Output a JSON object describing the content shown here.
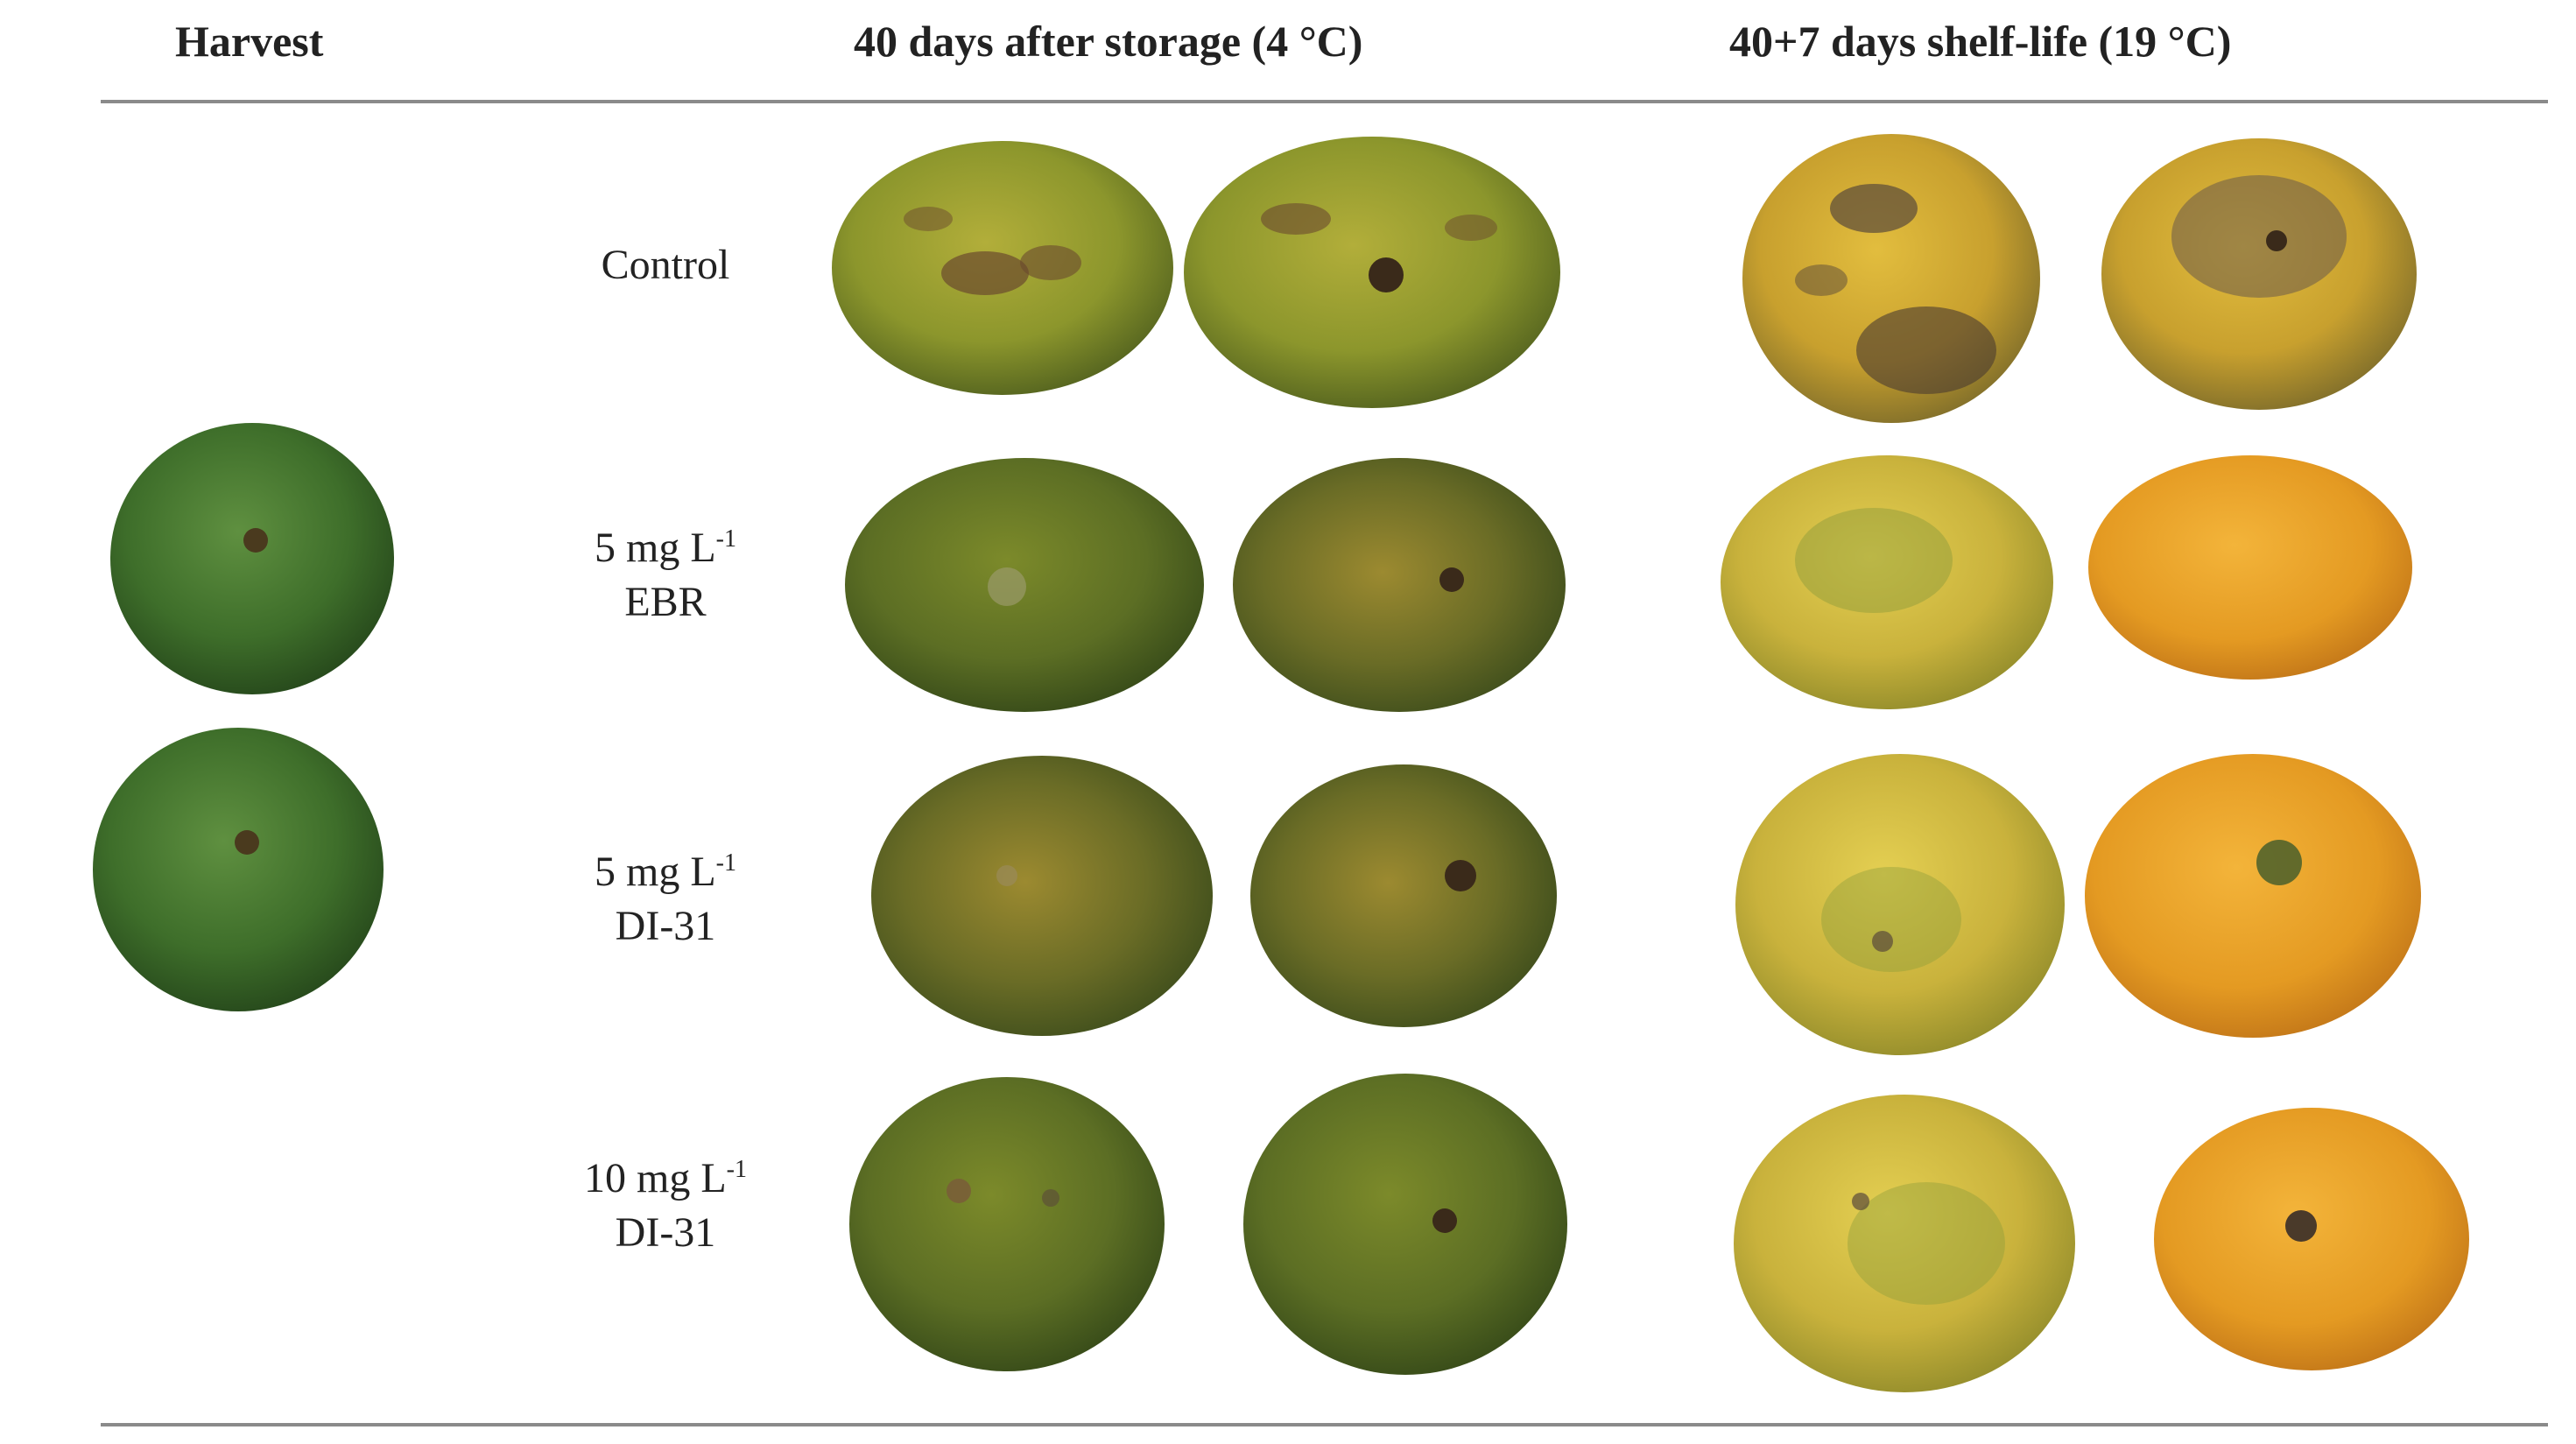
{
  "headers": {
    "harvest": "Harvest",
    "storage": "40 days after storage (4 °C)",
    "shelf_life": "40+7 days shelf-life (19 °C)"
  },
  "treatments": {
    "control": {
      "line1": "Control"
    },
    "ebr": {
      "line1_prefix": "5 mg L",
      "line1_sup": "-1",
      "line2": "EBR"
    },
    "di31_5": {
      "line1_prefix": "5 mg L",
      "line1_sup": "-1",
      "line2": "DI-31"
    },
    "di31_10": {
      "line1_prefix": "10 mg L",
      "line1_sup": "-1",
      "line2": "DI-31"
    }
  },
  "colors": {
    "harvest_green": "#3f6f2a",
    "storage_green_yellow": "#8a9a2c",
    "shelf_orange": "#e8a22a",
    "shelf_yellow": "#d8c04a",
    "rule": "#8a8a8a"
  }
}
